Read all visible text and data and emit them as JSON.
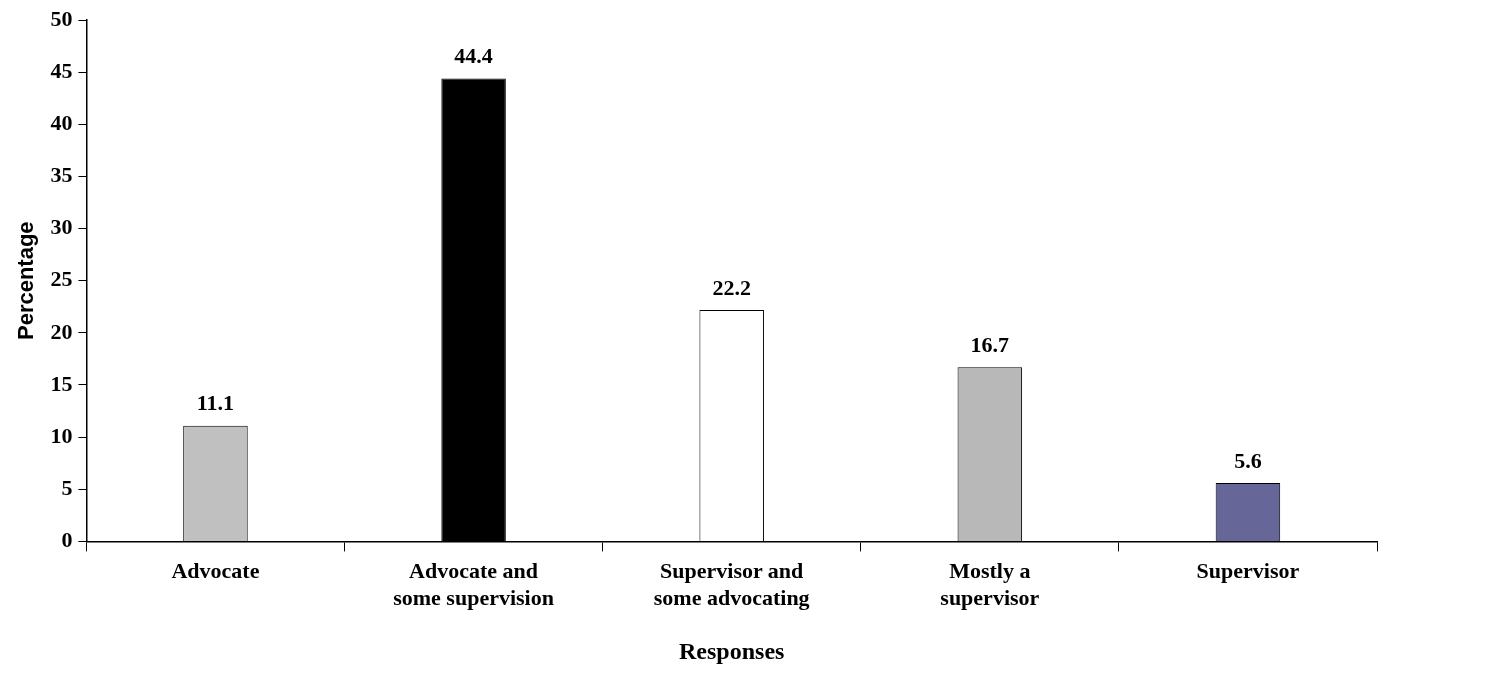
{
  "chart_data": {
    "type": "bar",
    "xlabel": "Responses",
    "ylabel": "Percentage",
    "categories": [
      "Advocate",
      "Advocate and some supervision",
      "Supervisor and some advocating",
      "Mostly a supervisor",
      "Supervisor"
    ],
    "values": [
      11.1,
      44.4,
      22.2,
      16.7,
      5.6
    ],
    "colors": [
      "#c0c0c0",
      "#000000",
      "#ffffff",
      "#b8b8b8",
      "#666699"
    ],
    "ylim": [
      0,
      50
    ],
    "yticks": [
      0,
      5,
      10,
      15,
      20,
      25,
      30,
      35,
      40,
      45,
      50
    ],
    "grid": false,
    "legend": false,
    "data_labels": true
  }
}
